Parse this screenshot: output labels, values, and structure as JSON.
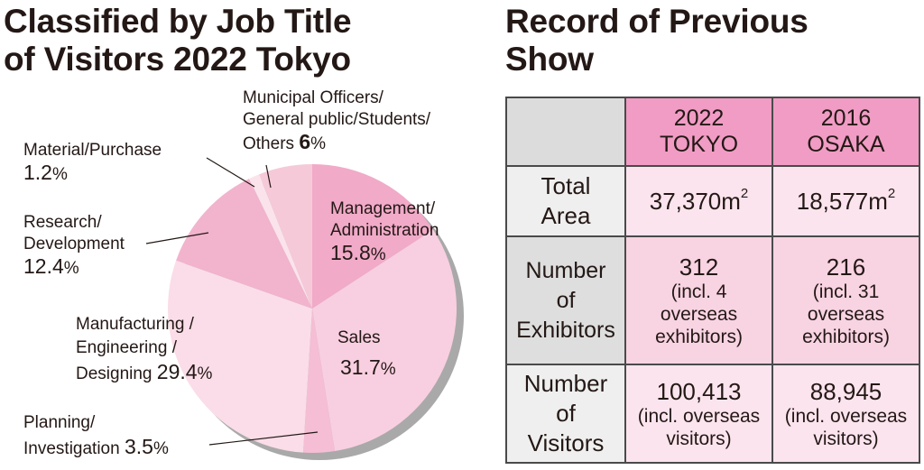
{
  "pie_section": {
    "title_line1": "Classified by Job Title",
    "title_line2": "of Visitors 2022 Tokyo"
  },
  "table_section": {
    "title_line1": "Record of Previous",
    "title_line2": "Show",
    "columns": [
      {
        "line1": "2022",
        "line2": "TOKYO"
      },
      {
        "line1": "2016",
        "line2": "OSAKA"
      }
    ],
    "rows": [
      {
        "label_lines": [
          "Total",
          "Area"
        ],
        "values": [
          {
            "main": "37,370m",
            "sup": "2"
          },
          {
            "main": "18,577m",
            "sup": "2"
          }
        ]
      },
      {
        "label_lines": [
          "Number",
          "of",
          "Exhibitors"
        ],
        "values": [
          {
            "main": "312",
            "note_lines": [
              "(incl. 4",
              "overseas",
              "exhibitors)"
            ]
          },
          {
            "main": "216",
            "note_lines": [
              "(incl. 31",
              "overseas",
              "exhibitors)"
            ]
          }
        ]
      },
      {
        "label_lines": [
          "Number",
          "of",
          "Visitors"
        ],
        "values": [
          {
            "main": "100,413",
            "note_lines": [
              "(incl. overseas",
              "visitors)"
            ]
          },
          {
            "main": "88,945",
            "note_lines": [
              "(incl. overseas",
              "visitors)"
            ]
          }
        ]
      }
    ]
  },
  "labels": {
    "management": {
      "line1": "Management/",
      "line2": "Administration",
      "value": "15.8",
      "unit": "%"
    },
    "sales": {
      "line1": "Sales",
      "value": "31.7",
      "unit": "%"
    },
    "planning": {
      "line1": "Planning/",
      "line2": "Investigation",
      "value": "3.5",
      "unit": "%"
    },
    "manufacturing": {
      "line1": "Manufacturing /",
      "line2": "Engineering /",
      "line3": "Designing",
      "value": "29.4",
      "unit": "%"
    },
    "research": {
      "line1": "Research/",
      "line2": "Development",
      "value": "12.4",
      "unit": "%"
    },
    "material": {
      "line1": "Material/Purchase",
      "value": "1.2",
      "unit": "%"
    },
    "others": {
      "line1": "Municipal Officers/",
      "line2": "General public/Students/",
      "line3": "Others",
      "value": "6",
      "unit": "%"
    }
  },
  "colors": {
    "management": "#f1aac8",
    "sales": "#f8cfe0",
    "planning": "#f5bed4",
    "manufacturing": "#fadde8",
    "research": "#f2b3cd",
    "material": "#fbe3ec",
    "others": "#f6c9d9",
    "shadow": "#a9a9a9",
    "header_pink": "#f09cc4"
  },
  "chart_data": [
    {
      "type": "pie",
      "title": "Classified by Job Title of Visitors 2022 Tokyo",
      "start_angle": "12 o'clock, clockwise",
      "categories": [
        "Management/Administration",
        "Sales",
        "Planning/Investigation",
        "Manufacturing / Engineering / Designing",
        "Research/Development",
        "Material/Purchase",
        "Municipal Officers/General public/Students/Others"
      ],
      "values": [
        15.8,
        31.7,
        3.5,
        29.4,
        12.4,
        1.2,
        6.0
      ],
      "unit": "%"
    },
    {
      "type": "table",
      "title": "Record of Previous Show",
      "columns": [
        "",
        "2022 TOKYO",
        "2016 OSAKA"
      ],
      "rows": [
        [
          "Total Area",
          "37,370m2",
          "18,577m2"
        ],
        [
          "Number of Exhibitors",
          "312 (incl. 4 overseas exhibitors)",
          "216 (incl. 31 overseas exhibitors)"
        ],
        [
          "Number of Visitors",
          "100,413 (incl. overseas visitors)",
          "88,945 (incl. overseas visitors)"
        ]
      ]
    }
  ]
}
